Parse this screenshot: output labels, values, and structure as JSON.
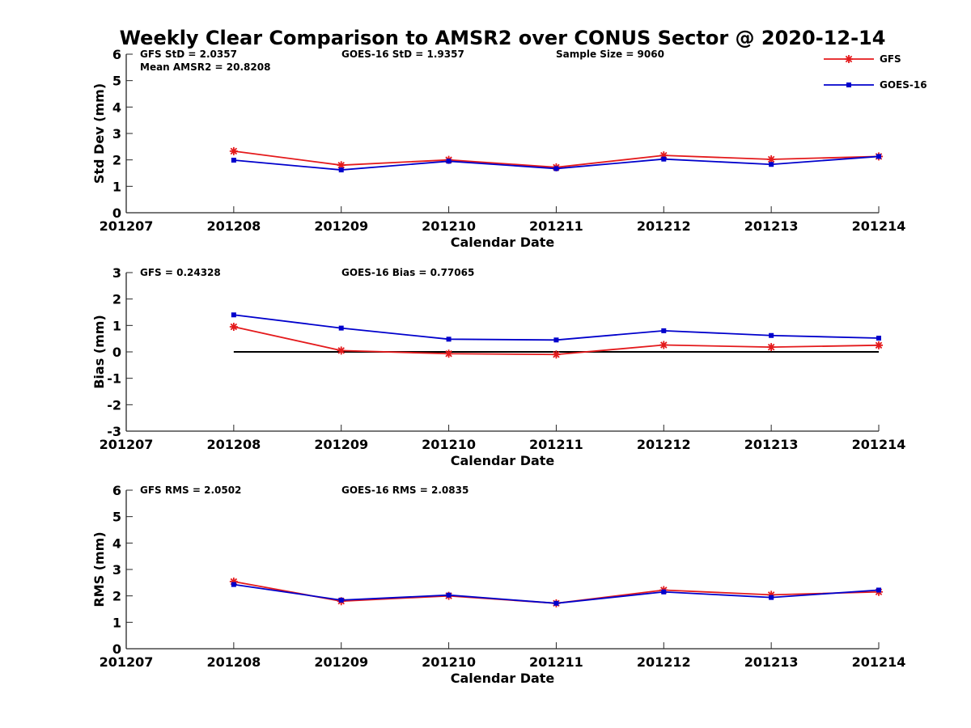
{
  "title": "Weekly Clear Comparison to AMSR2 over CONUS Sector @ 2020-12-14",
  "legend": {
    "placement": "top-right",
    "entries": [
      {
        "name": "GFS",
        "color": "#e41a1c",
        "marker": "asterisk"
      },
      {
        "name": "GOES-16",
        "color": "#0000cc",
        "marker": "square"
      }
    ]
  },
  "chart_data": [
    {
      "type": "line",
      "id": "std",
      "xlabel": "Calendar Date",
      "ylabel": "Std Dev (mm)",
      "ylim": [
        0,
        6
      ],
      "yticks": [
        "0",
        "1",
        "2",
        "3",
        "4",
        "5",
        "6"
      ],
      "xticks": [
        "201207",
        "201208",
        "201209",
        "201210",
        "201211",
        "201212",
        "201213",
        "201214"
      ],
      "x": [
        1,
        2,
        3,
        4,
        5,
        6,
        7
      ],
      "zero_line": false,
      "stats": [
        {
          "text": "GFS StD = 2.0357",
          "slot": "left"
        },
        {
          "text": "GOES-16 StD = 1.9357",
          "slot": "middle"
        },
        {
          "text": "Sample Size = 9060",
          "slot": "right"
        },
        {
          "text": "Mean AMSR2 = 20.8208",
          "slot": "left2"
        }
      ],
      "series": [
        {
          "name": "GFS",
          "values": [
            2.33,
            1.8,
            2.0,
            1.72,
            2.17,
            2.02,
            2.13
          ]
        },
        {
          "name": "GOES-16",
          "values": [
            1.99,
            1.62,
            1.95,
            1.67,
            2.03,
            1.83,
            2.13
          ]
        }
      ]
    },
    {
      "type": "line",
      "id": "bias",
      "xlabel": "Calendar Date",
      "ylabel": "Bias (mm)",
      "ylim": [
        -3,
        3
      ],
      "yticks": [
        "-3",
        "-2",
        "-1",
        "0",
        "1",
        "2",
        "3"
      ],
      "xticks": [
        "201207",
        "201208",
        "201209",
        "201210",
        "201211",
        "201212",
        "201213",
        "201214"
      ],
      "x": [
        1,
        2,
        3,
        4,
        5,
        6,
        7
      ],
      "zero_line": true,
      "stats": [
        {
          "text": "GFS = 0.24328",
          "slot": "left"
        },
        {
          "text": "GOES-16 Bias  = 0.77065",
          "slot": "middle"
        }
      ],
      "series": [
        {
          "name": "GFS",
          "values": [
            0.95,
            0.05,
            -0.07,
            -0.1,
            0.26,
            0.18,
            0.25
          ]
        },
        {
          "name": "GOES-16",
          "values": [
            1.4,
            0.9,
            0.48,
            0.45,
            0.8,
            0.62,
            0.52
          ]
        }
      ]
    },
    {
      "type": "line",
      "id": "rms",
      "xlabel": "Calendar Date",
      "ylabel": "RMS (mm)",
      "ylim": [
        0,
        6
      ],
      "yticks": [
        "0",
        "1",
        "2",
        "3",
        "4",
        "5",
        "6"
      ],
      "xticks": [
        "201207",
        "201208",
        "201209",
        "201210",
        "201211",
        "201212",
        "201213",
        "201214"
      ],
      "x": [
        1,
        2,
        3,
        4,
        5,
        6,
        7
      ],
      "zero_line": false,
      "stats": [
        {
          "text": "GFS RMS = 2.0502",
          "slot": "left"
        },
        {
          "text": "GOES-16 RMS = 2.0835",
          "slot": "middle"
        }
      ],
      "series": [
        {
          "name": "GFS",
          "values": [
            2.54,
            1.8,
            2.0,
            1.72,
            2.22,
            2.04,
            2.15
          ]
        },
        {
          "name": "GOES-16",
          "values": [
            2.43,
            1.84,
            2.03,
            1.72,
            2.15,
            1.94,
            2.22
          ]
        }
      ]
    }
  ]
}
